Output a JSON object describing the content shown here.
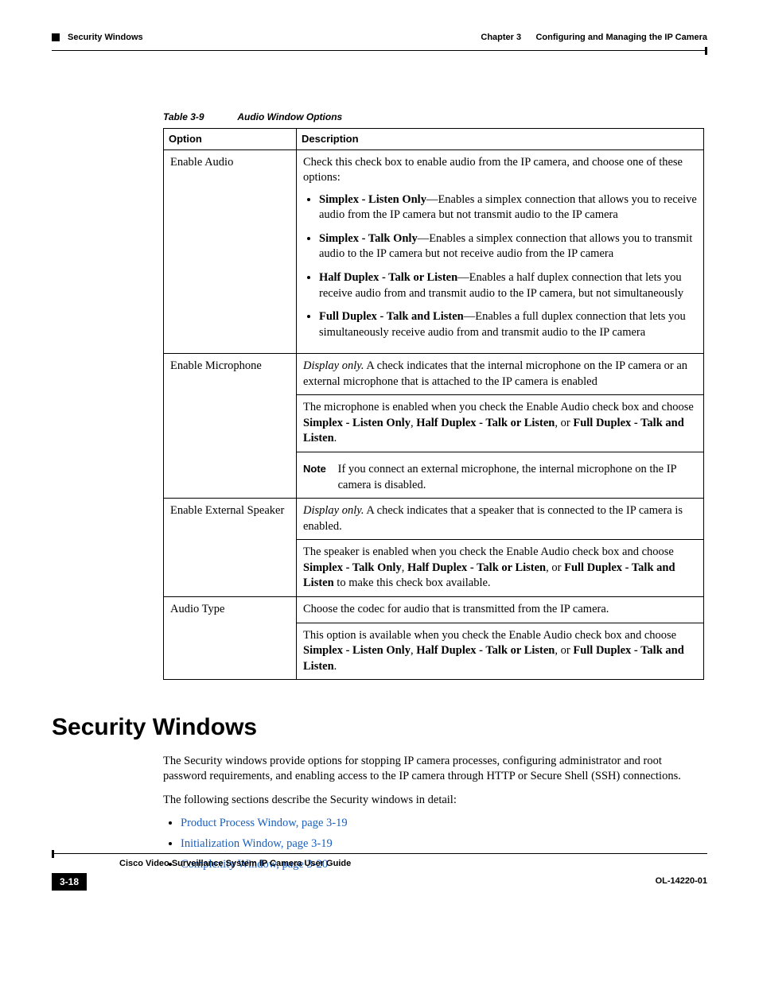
{
  "header": {
    "section": "Security Windows",
    "chapter": "Chapter 3      Configuring and Managing the IP Camera"
  },
  "table": {
    "number": "Table 3-9",
    "title": "Audio Window Options",
    "col1": "Option",
    "col2": "Description",
    "rows": {
      "enableAudio": {
        "option": "Enable Audio",
        "intro": "Check this check box to enable audio from the IP camera, and choose one of these options:",
        "b1_bold": "Simplex - Listen Only",
        "b1_rest": "—Enables a simplex connection that allows you to receive audio from the IP camera but not transmit audio to the IP camera",
        "b2_bold": "Simplex - Talk Only",
        "b2_rest": "—Enables a simplex connection that allows you to transmit audio to the IP camera but not receive audio from the IP camera",
        "b3_bold": "Half Duplex - Talk or Listen",
        "b3_rest": "—Enables a half duplex connection that lets you receive audio from and transmit audio to the IP camera, but not simultaneously",
        "b4_bold": "Full Duplex - Talk and Listen",
        "b4_rest": "—Enables a full duplex connection that lets you simultaneously receive audio from and transmit audio to the IP camera"
      },
      "enableMic": {
        "option": "Enable Microphone",
        "p1_ital": "Display only.",
        "p1_rest": " A check indicates that the internal microphone on the IP camera or an external microphone that is attached to the IP camera is enabled",
        "p2_pre": "The microphone is enabled when you check the Enable Audio check box and choose ",
        "p2_b1": "Simplex - Listen Only",
        "p2_mid1": ", ",
        "p2_b2": "Half Duplex - Talk or Listen",
        "p2_mid2": ", or ",
        "p2_b3": "Full Duplex - Talk and Listen",
        "p2_end": ".",
        "note_label": "Note",
        "note_text": "If you connect an external microphone, the internal microphone on the IP camera is disabled."
      },
      "enableSpk": {
        "option": "Enable External Speaker",
        "p1_ital": "Display only.",
        "p1_rest": " A check indicates that a speaker that is connected to the IP camera is enabled.",
        "p2_pre": "The speaker is enabled when you check the Enable Audio check box and choose ",
        "p2_b1": "Simplex - Talk Only",
        "p2_mid1": ", ",
        "p2_b2": "Half Duplex - Talk or Listen",
        "p2_mid2": ", or ",
        "p2_b3": "Full Duplex - Talk and Listen",
        "p2_end": " to make this check box available."
      },
      "audioType": {
        "option": "Audio Type",
        "p1": "Choose the codec for audio that is transmitted from the IP camera.",
        "p2_pre": "This option is available when you check the Enable Audio check box and choose ",
        "p2_b1": "Simplex - Listen Only",
        "p2_mid1": ", ",
        "p2_b2": "Half Duplex - Talk or Listen",
        "p2_mid2": ", or ",
        "p2_b3": "Full Duplex - Talk and Listen",
        "p2_end": "."
      }
    }
  },
  "section": {
    "heading": "Security Windows",
    "p1": "The Security windows provide options for stopping IP camera processes, configuring administrator and root password requirements, and enabling access to the IP camera through HTTP or Secure Shell (SSH) connections.",
    "p2": "The following sections describe the Security windows in detail:",
    "links": {
      "l1": "Product Process Window, page 3-19",
      "l2": "Initialization Window, page 3-19",
      "l3": "Complexity Window, page 3-20"
    }
  },
  "footer": {
    "guide": "Cisco Video Surveillance System IP Camera User Guide",
    "page": "3-18",
    "docid": "OL-14220-01"
  }
}
